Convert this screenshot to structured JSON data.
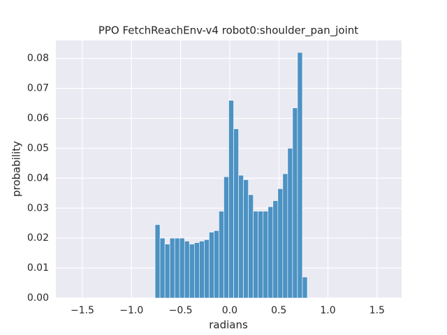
{
  "chart_data": {
    "type": "histogram",
    "title": "PPO FetchReachEnv-v4 robot0:shoulder_pan_joint",
    "x_label": "radians",
    "y_label": "probability",
    "color": "#4c92c3",
    "background": "#eaeaf2",
    "grid": true,
    "bins": [
      -0.76,
      -0.71,
      -0.66,
      -0.61,
      -0.56,
      -0.51,
      -0.46,
      -0.41,
      -0.36,
      -0.31,
      -0.26,
      -0.21,
      -0.16,
      -0.11,
      -0.06,
      -0.01,
      0.04,
      0.09,
      0.14,
      0.19,
      0.24,
      0.29,
      0.34,
      0.39,
      0.44,
      0.49,
      0.54,
      0.59,
      0.64,
      0.69,
      0.74,
      0.79
    ],
    "counts": [
      0.0245,
      0.02,
      0.018,
      0.02,
      0.02,
      0.02,
      0.019,
      0.018,
      0.0185,
      0.019,
      0.0195,
      0.022,
      0.0225,
      0.029,
      0.0405,
      0.066,
      0.0565,
      0.041,
      0.0395,
      0.0345,
      0.029,
      0.029,
      0.029,
      0.0305,
      0.0325,
      0.0365,
      0.0415,
      0.05,
      0.0635,
      0.082,
      0.007
    ],
    "xlim": [
      -1.77,
      1.75
    ],
    "xticks": [
      {
        "value": -1.5,
        "label": "−1.5"
      },
      {
        "value": -1.0,
        "label": "−1.0"
      },
      {
        "value": -0.5,
        "label": "−0.5"
      },
      {
        "value": 0.0,
        "label": "0.0"
      },
      {
        "value": 0.5,
        "label": "0.5"
      },
      {
        "value": 1.0,
        "label": "1.0"
      },
      {
        "value": 1.5,
        "label": "1.5"
      }
    ],
    "ylim": [
      0,
      0.086
    ],
    "yticks": [
      {
        "value": 0,
        "label": "0.00"
      },
      {
        "value": 0.01,
        "label": "0.01"
      },
      {
        "value": 0.02,
        "label": "0.02"
      },
      {
        "value": 0.03,
        "label": "0.03"
      },
      {
        "value": 0.04,
        "label": "0.04"
      },
      {
        "value": 0.05,
        "label": "0.05"
      },
      {
        "value": 0.06,
        "label": "0.06"
      },
      {
        "value": 0.07,
        "label": "0.07"
      },
      {
        "value": 0.08,
        "label": "0.08"
      }
    ]
  }
}
